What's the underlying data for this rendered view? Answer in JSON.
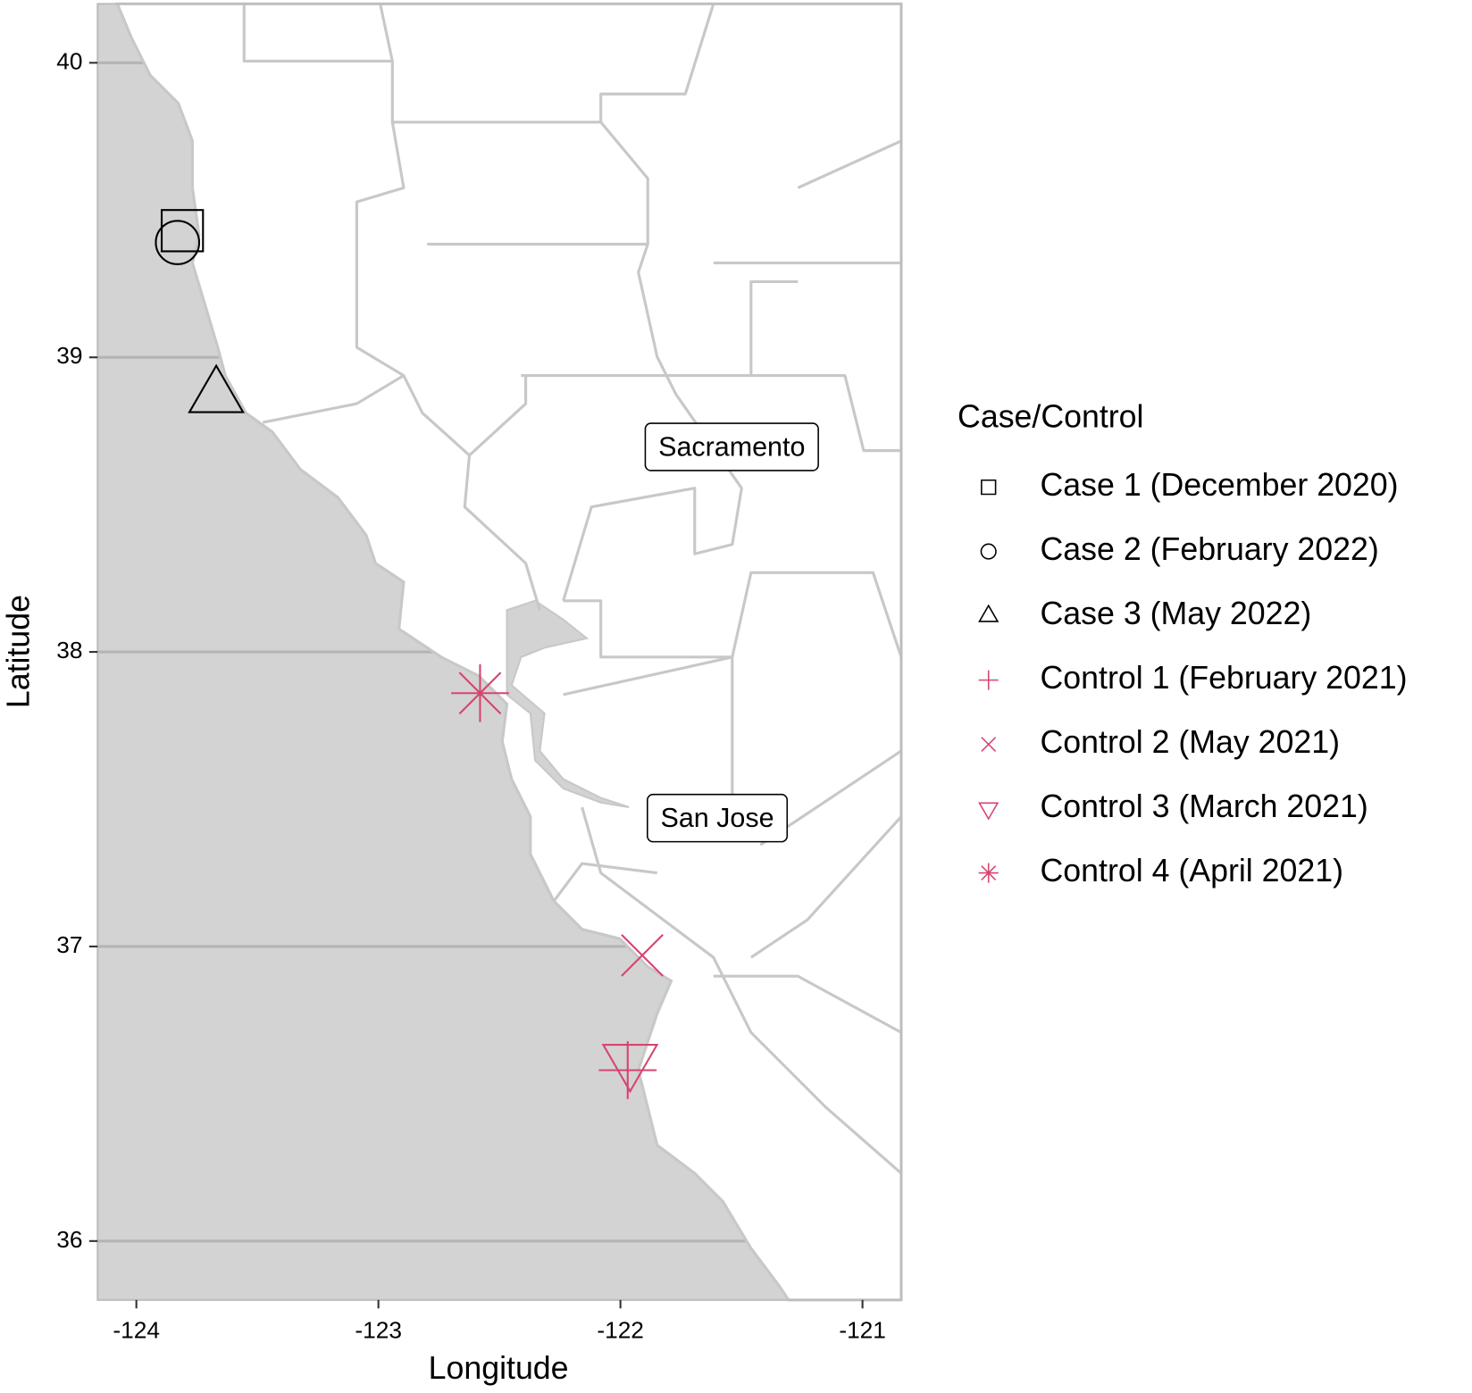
{
  "chart_data": {
    "type": "scatter",
    "x_label": "Longitude",
    "y_label": "Latitude",
    "xlim": [
      -124.16,
      -120.84
    ],
    "ylim": [
      35.8,
      40.2
    ],
    "xticks": [
      -124,
      -123,
      -122,
      -121
    ],
    "yticks": [
      36,
      37,
      38,
      39,
      40
    ],
    "grid": "y",
    "legend_title": "Case/Control",
    "legend_position": "right",
    "series": [
      {
        "name": "Case 1 (December 2020)",
        "color": "#000000",
        "marker": "square",
        "x": [
          -123.81
        ],
        "y": [
          39.43
        ]
      },
      {
        "name": "Case 2 (February 2022)",
        "color": "#000000",
        "marker": "circle",
        "x": [
          -123.83
        ],
        "y": [
          39.39
        ]
      },
      {
        "name": "Case 3 (May 2022)",
        "color": "#000000",
        "marker": "triangle-up",
        "x": [
          -123.67
        ],
        "y": [
          38.87
        ]
      },
      {
        "name": "Control 1 (February 2021)",
        "color": "#d6456f",
        "marker": "plus",
        "x": [
          -121.97
        ],
        "y": [
          36.58
        ]
      },
      {
        "name": "Control 2 (May 2021)",
        "color": "#d6456f",
        "marker": "x",
        "x": [
          -121.91
        ],
        "y": [
          36.97
        ]
      },
      {
        "name": "Control 3 (March 2021)",
        "color": "#d6456f",
        "marker": "triangle-down",
        "x": [
          -121.96
        ],
        "y": [
          36.61
        ]
      },
      {
        "name": "Control 4 (April 2021)",
        "color": "#d6456f",
        "marker": "asterisk",
        "x": [
          -122.58
        ],
        "y": [
          37.86
        ]
      }
    ],
    "annotations": [
      {
        "text": "Sacramento",
        "x": -121.54,
        "y": 38.69
      },
      {
        "text": "San Jose",
        "x": -121.6,
        "y": 37.43
      }
    ]
  }
}
